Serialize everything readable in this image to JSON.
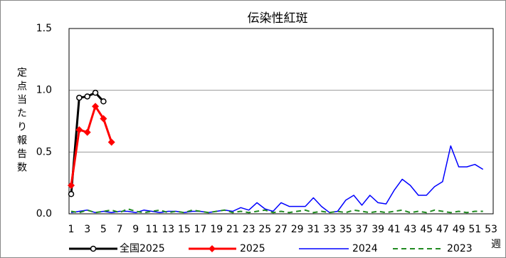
{
  "chart_data": {
    "type": "line",
    "title": "伝染性紅斑",
    "y_label": "定点当たり報告数",
    "x_label": "週",
    "categories": [
      "1",
      null,
      "3",
      null,
      "5",
      null,
      "7",
      null,
      "9",
      null,
      "11",
      null,
      "13",
      null,
      "15",
      null,
      "17",
      null,
      "19",
      null,
      "21",
      null,
      "23",
      null,
      "25",
      null,
      "27",
      null,
      "29",
      null,
      "31",
      null,
      "33",
      null,
      "35",
      null,
      "37",
      null,
      "39",
      null,
      "41",
      null,
      "43",
      null,
      "45",
      null,
      "47",
      null,
      "49",
      null,
      "51",
      null,
      "53"
    ],
    "ylim": [
      0,
      1.5
    ],
    "yticks": [
      {
        "value": 0,
        "label": "0.0"
      },
      {
        "value": 0.5,
        "label": "0.5"
      },
      {
        "value": 1,
        "label": "1.0"
      },
      {
        "value": 1.5,
        "label": "1.5"
      }
    ],
    "grid": true,
    "legend": "bottom",
    "series": [
      {
        "name": "全国2025",
        "color": "#000000",
        "marker": "circle",
        "dash": false,
        "width": 3,
        "values": [
          0.16,
          0.94,
          0.95,
          0.98,
          0.91,
          null,
          null,
          null,
          null,
          null,
          null,
          null,
          null,
          null,
          null,
          null,
          null,
          null,
          null,
          null,
          null,
          null,
          null,
          null,
          null,
          null,
          null,
          null,
          null,
          null,
          null,
          null,
          null,
          null,
          null,
          null,
          null,
          null,
          null,
          null,
          null,
          null,
          null,
          null,
          null,
          null,
          null,
          null,
          null,
          null,
          null,
          null,
          null
        ]
      },
      {
        "name": "2025",
        "color": "#ff0000",
        "marker": "diamond",
        "dash": false,
        "width": 3,
        "values": [
          0.23,
          0.68,
          0.66,
          0.87,
          0.77,
          0.58,
          null,
          null,
          null,
          null,
          null,
          null,
          null,
          null,
          null,
          null,
          null,
          null,
          null,
          null,
          null,
          null,
          null,
          null,
          null,
          null,
          null,
          null,
          null,
          null,
          null,
          null,
          null,
          null,
          null,
          null,
          null,
          null,
          null,
          null,
          null,
          null,
          null,
          null,
          null,
          null,
          null,
          null,
          null,
          null,
          null,
          null,
          null
        ]
      },
      {
        "name": "2024",
        "color": "#0000ff",
        "marker": "none",
        "dash": false,
        "width": 1.5,
        "values": [
          0.01,
          0.02,
          0.03,
          0.01,
          0.02,
          0.01,
          0.02,
          0.02,
          0.01,
          0.03,
          0.02,
          0.01,
          0.02,
          0.02,
          0.01,
          0.02,
          0.02,
          0.01,
          0.02,
          0.03,
          0.02,
          0.05,
          0.03,
          0.09,
          0.04,
          0.02,
          0.09,
          0.06,
          0.06,
          0.06,
          0.13,
          0.06,
          0.01,
          0.02,
          0.11,
          0.15,
          0.07,
          0.15,
          0.09,
          0.08,
          0.19,
          0.28,
          0.23,
          0.15,
          0.15,
          0.22,
          0.26,
          0.55,
          0.38,
          0.38,
          0.4,
          0.36,
          null
        ]
      },
      {
        "name": "2023",
        "color": "#228b22",
        "marker": "none",
        "dash": true,
        "width": 2,
        "values": [
          0.02,
          0.01,
          0.03,
          0.01,
          0.02,
          0.03,
          0.01,
          0.04,
          0.02,
          0.01,
          0.02,
          0.03,
          0.01,
          0.02,
          0.01,
          0.03,
          0.02,
          0.01,
          0.02,
          0.03,
          0.01,
          0.02,
          0.01,
          0.02,
          0.03,
          0.01,
          0.02,
          0.01,
          0.02,
          0.03,
          0.01,
          0.02,
          0.01,
          0.02,
          0.01,
          0.03,
          0.02,
          0.01,
          0.02,
          0.01,
          0.02,
          0.03,
          0.01,
          0.02,
          0.01,
          0.03,
          0.02,
          0.01,
          0.02,
          0.01,
          0.02,
          0.02,
          null
        ]
      }
    ]
  }
}
